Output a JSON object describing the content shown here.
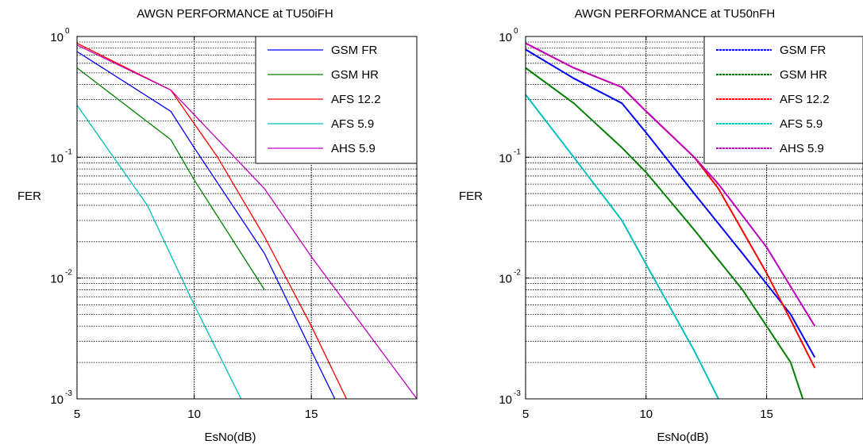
{
  "chart_data": [
    {
      "type": "line",
      "title": "AWGN PERFORMANCE at TU50iFH",
      "xlabel": "EsNo(dB)",
      "ylabel": "FER",
      "xlim": [
        5,
        19.5
      ],
      "ylim": [
        0.001,
        1
      ],
      "yscale": "log",
      "grid": true,
      "legend_position": "top-right",
      "x_ticks": [
        "5",
        "10",
        "15"
      ],
      "y_ticks": [
        {
          "base": "10",
          "exp": "0",
          "value": 1
        },
        {
          "base": "10",
          "exp": "-1",
          "value": 0.1
        },
        {
          "base": "10",
          "exp": "-2",
          "value": 0.01
        },
        {
          "base": "10",
          "exp": "-3",
          "value": 0.001
        }
      ],
      "series": [
        {
          "name": "GSM FR",
          "color": "#0000ff",
          "x": [
            5,
            9,
            10,
            13,
            15,
            16
          ],
          "y": [
            0.75,
            0.24,
            0.12,
            0.016,
            0.0025,
            0.001
          ]
        },
        {
          "name": "GSM HR",
          "color": "#008000",
          "x": [
            5,
            9,
            10,
            13
          ],
          "y": [
            0.55,
            0.14,
            0.065,
            0.008
          ]
        },
        {
          "name": "AFS 12.2",
          "color": "#ff0000",
          "x": [
            5,
            9,
            11,
            13,
            15,
            16.5
          ],
          "y": [
            0.88,
            0.36,
            0.1,
            0.022,
            0.004,
            0.001
          ]
        },
        {
          "name": "AFS 5.9",
          "color": "#00bfbf",
          "x": [
            5,
            8,
            10,
            12
          ],
          "y": [
            0.27,
            0.04,
            0.006,
            0.001
          ]
        },
        {
          "name": "AHS 5.9",
          "color": "#bf00bf",
          "x": [
            5,
            9,
            13,
            15,
            19.5
          ],
          "y": [
            0.85,
            0.36,
            0.055,
            0.015,
            0.001
          ]
        }
      ]
    },
    {
      "type": "line",
      "title": "AWGN PERFORMANCE at TU50nFH",
      "xlabel": "EsNo(dB)",
      "ylabel": "FER",
      "xlim": [
        5,
        19
      ],
      "ylim": [
        0.001,
        1
      ],
      "yscale": "log",
      "grid": true,
      "legend_position": "top-right",
      "x_ticks": [
        "5",
        "10",
        "15"
      ],
      "y_ticks": [
        {
          "base": "10",
          "exp": "0",
          "value": 1
        },
        {
          "base": "10",
          "exp": "-1",
          "value": 0.1
        },
        {
          "base": "10",
          "exp": "-2",
          "value": 0.01
        },
        {
          "base": "10",
          "exp": "-3",
          "value": 0.001
        }
      ],
      "series": [
        {
          "name": "GSM FR",
          "color": "#0000ff",
          "x": [
            5,
            7,
            9,
            10,
            12,
            14,
            16,
            17
          ],
          "y": [
            0.78,
            0.45,
            0.28,
            0.16,
            0.05,
            0.016,
            0.005,
            0.0022
          ]
        },
        {
          "name": "GSM HR",
          "color": "#008000",
          "x": [
            5,
            7,
            9,
            10,
            12,
            14,
            16,
            16.5
          ],
          "y": [
            0.55,
            0.28,
            0.12,
            0.075,
            0.025,
            0.008,
            0.002,
            0.001
          ]
        },
        {
          "name": "AFS 12.2",
          "color": "#ff0000",
          "x": [
            5,
            7,
            9,
            10,
            12,
            13,
            15,
            16,
            17
          ],
          "y": [
            0.88,
            0.55,
            0.38,
            0.24,
            0.1,
            0.055,
            0.011,
            0.0045,
            0.0018
          ]
        },
        {
          "name": "AFS 5.9",
          "color": "#00bfbf",
          "x": [
            5,
            7,
            9,
            10,
            12,
            13
          ],
          "y": [
            0.33,
            0.1,
            0.03,
            0.013,
            0.0025,
            0.001
          ]
        },
        {
          "name": "AHS 5.9",
          "color": "#bf00bf",
          "x": [
            5,
            7,
            9,
            10,
            12,
            13,
            15,
            17
          ],
          "y": [
            0.88,
            0.55,
            0.38,
            0.24,
            0.1,
            0.06,
            0.018,
            0.004
          ]
        }
      ]
    }
  ]
}
